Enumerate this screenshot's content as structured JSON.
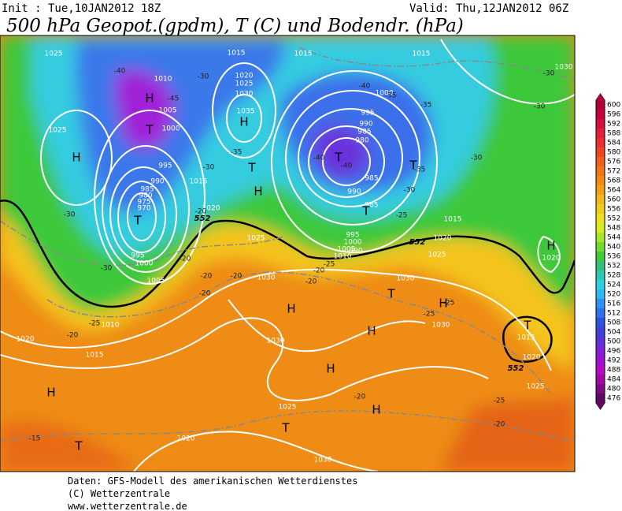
{
  "header": {
    "init": "Init : Tue,10JAN2012 18Z",
    "valid": "Valid: Thu,12JAN2012 06Z",
    "title": "500 hPa Geopot.(gpdm), T (C) und Bodendr. (hPa)"
  },
  "map": {
    "pressure_labels": [
      "1025",
      "1025",
      "1010",
      "1005",
      "1000",
      "995",
      "990",
      "985",
      "980",
      "975",
      "970",
      "995",
      "1000",
      "1005",
      "1010",
      "1015",
      "1020",
      "1015",
      "1020",
      "1025",
      "1030",
      "1035",
      "1015",
      "1020",
      "1025",
      "1030",
      "1015",
      "1000",
      "995",
      "990",
      "985",
      "980",
      "985",
      "990",
      "985",
      "990",
      "995",
      "1000",
      "1005",
      "1010",
      "1015",
      "1015",
      "1020",
      "1025",
      "1030",
      "1030",
      "1015",
      "1020",
      "1025",
      "1030",
      "1020",
      "1030",
      "1025",
      "1020",
      "1030"
    ],
    "temperature_labels": [
      "-40",
      "-45",
      "-30",
      "-35",
      "-30",
      "-20",
      "-20",
      "-20",
      "-20",
      "-20",
      "-30",
      "-30",
      "-25",
      "-20",
      "-40",
      "-40",
      "-40",
      "-35",
      "-35",
      "-30",
      "-30",
      "-30",
      "-35",
      "-30",
      "-25",
      "-25",
      "-25",
      "-20",
      "-20",
      "-25",
      "-15",
      "-20",
      "-20",
      "-25"
    ],
    "pressure_centers": [
      "H",
      "H",
      "H",
      "H",
      "T",
      "T",
      "T",
      "T",
      "T",
      "H",
      "T",
      "H",
      "H",
      "H",
      "H",
      "H",
      "T",
      "T",
      "H",
      "T",
      "T"
    ],
    "isohypse_labels": [
      "552",
      "552",
      "552"
    ]
  },
  "colorbar": {
    "ticks": [
      600,
      596,
      592,
      588,
      584,
      580,
      576,
      572,
      568,
      564,
      560,
      556,
      552,
      548,
      544,
      540,
      536,
      532,
      528,
      524,
      520,
      516,
      512,
      508,
      504,
      500,
      496,
      492,
      488,
      484,
      480,
      476
    ],
    "colors": [
      "#b0003a",
      "#c4003c",
      "#d4103c",
      "#e0203a",
      "#e83030",
      "#ec4626",
      "#f0601c",
      "#f07418",
      "#f08a14",
      "#f0a014",
      "#f0b818",
      "#f0cc1c",
      "#f0e020",
      "#d8ec20",
      "#a8e428",
      "#70d830",
      "#40cc38",
      "#30c078",
      "#30c8b0",
      "#30d0e0",
      "#30b8f0",
      "#3090f0",
      "#3070e8",
      "#3050e0",
      "#4040d8",
      "#6030d8",
      "#8020d8",
      "#a010d0",
      "#b808c0",
      "#a008a0",
      "#800880",
      "#600860"
    ]
  },
  "footer": {
    "line1": "Daten: GFS-Modell des amerikanischen Wetterdienstes",
    "line2": "(C) Wetterzentrale",
    "line3": "www.wetterzentrale.de"
  }
}
